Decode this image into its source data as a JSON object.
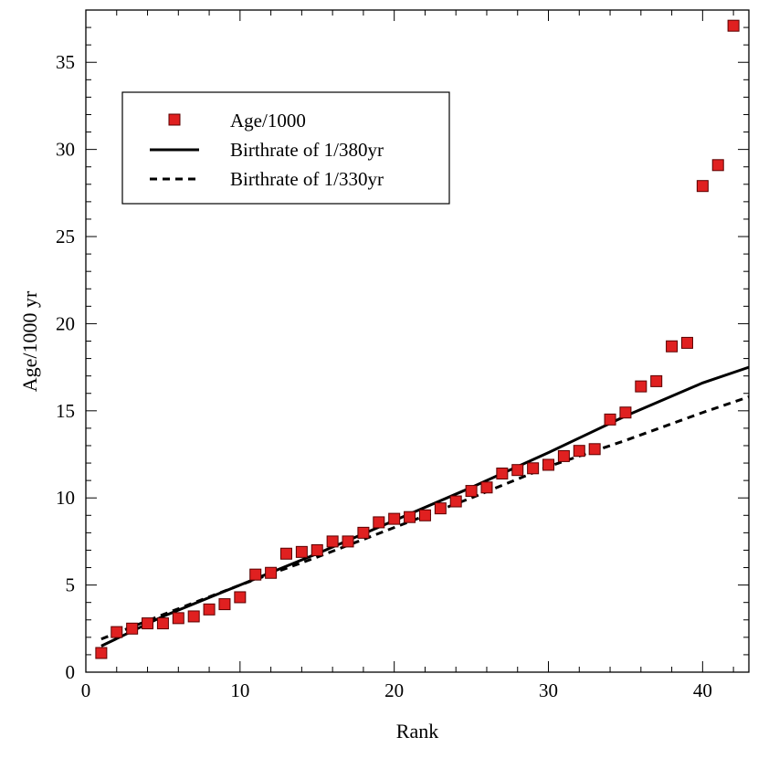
{
  "chart_data": {
    "type": "scatter",
    "xlabel": "Rank",
    "ylabel": "Age/1000 yr",
    "xlim": [
      0,
      43
    ],
    "ylim": [
      0,
      38
    ],
    "xticks": [
      0,
      10,
      20,
      30,
      40
    ],
    "yticks": [
      0,
      5,
      10,
      15,
      20,
      25,
      30,
      35
    ],
    "legend_position": "upper-left",
    "series": [
      {
        "name": "Age/1000",
        "kind": "markers",
        "color": "#e02020",
        "x": [
          1,
          2,
          3,
          4,
          5,
          6,
          7,
          8,
          9,
          10,
          11,
          12,
          13,
          14,
          15,
          16,
          17,
          18,
          19,
          20,
          21,
          22,
          23,
          24,
          25,
          26,
          27,
          28,
          29,
          30,
          31,
          32,
          33,
          34,
          35,
          36,
          37,
          38,
          39,
          40,
          41,
          42
        ],
        "y": [
          1.1,
          2.3,
          2.5,
          2.8,
          2.8,
          3.1,
          3.2,
          3.6,
          3.9,
          4.3,
          5.6,
          5.7,
          6.8,
          6.9,
          7.0,
          7.5,
          7.5,
          8.0,
          8.6,
          8.8,
          8.9,
          9.0,
          9.4,
          9.8,
          10.4,
          10.6,
          11.4,
          11.6,
          11.7,
          11.9,
          12.4,
          12.7,
          12.8,
          14.5,
          14.9,
          16.4,
          16.7,
          18.7,
          18.9,
          27.9,
          29.1,
          37.1
        ]
      },
      {
        "name": "Birthrate of 1/380yr",
        "kind": "line",
        "style": "solid",
        "color": "#000000",
        "x": [
          1,
          5,
          10,
          15,
          20,
          25,
          30,
          35,
          40,
          43
        ],
        "y": [
          1.5,
          3.2,
          5.0,
          6.8,
          8.7,
          10.6,
          12.6,
          14.7,
          16.6,
          17.5
        ]
      },
      {
        "name": "Birthrate of 1/330yr",
        "kind": "line",
        "style": "dashed",
        "color": "#000000",
        "x": [
          1,
          5,
          10,
          15,
          20,
          25,
          30,
          35,
          40,
          43
        ],
        "y": [
          1.9,
          3.3,
          5.0,
          6.6,
          8.3,
          10.0,
          11.8,
          13.3,
          14.9,
          15.8
        ]
      }
    ]
  }
}
